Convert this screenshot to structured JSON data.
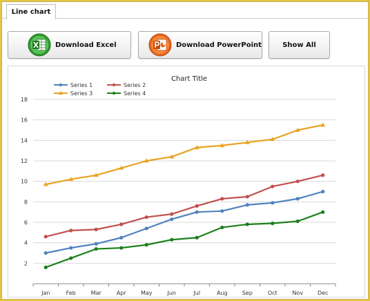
{
  "tab": {
    "label": "Line chart"
  },
  "toolbar": {
    "excel_label": "Download Excel",
    "ppt_label": "Download PowerPoint",
    "show_all_label": "Show All"
  },
  "colors": {
    "series_1": "#4f81bd",
    "series_2": "#c0504d",
    "series_3": "#e8a321",
    "series_4": "#1a7f1a"
  },
  "chart_data": {
    "type": "line",
    "title": "Chart Title",
    "xlabel": "",
    "ylabel": "",
    "categories": [
      "Jan",
      "Feb",
      "Mar",
      "Apr",
      "May",
      "Jun",
      "Jul",
      "Aug",
      "Sep",
      "Oct",
      "Nov",
      "Dec"
    ],
    "ylim": [
      0,
      18
    ],
    "yticks": [
      2,
      4,
      6,
      8,
      10,
      12,
      14,
      16,
      18
    ],
    "grid": true,
    "legend": "top-left",
    "series": [
      {
        "name": "Series 1",
        "marker": "circle",
        "values": [
          3.0,
          3.5,
          3.9,
          4.5,
          5.4,
          6.3,
          7.0,
          7.1,
          7.7,
          7.9,
          8.3,
          9.0
        ]
      },
      {
        "name": "Series 2",
        "marker": "circle",
        "values": [
          4.6,
          5.2,
          5.3,
          5.8,
          6.5,
          6.8,
          7.6,
          8.3,
          8.5,
          9.5,
          10.0,
          10.6
        ]
      },
      {
        "name": "Series 3",
        "marker": "triangle",
        "values": [
          9.7,
          10.2,
          10.6,
          11.3,
          12.0,
          12.4,
          13.3,
          13.5,
          13.8,
          14.1,
          15.0,
          15.5
        ]
      },
      {
        "name": "Series 4",
        "marker": "circle",
        "values": [
          1.6,
          2.5,
          3.4,
          3.5,
          3.8,
          4.3,
          4.5,
          5.5,
          5.8,
          5.9,
          6.1,
          7.0
        ]
      }
    ]
  }
}
